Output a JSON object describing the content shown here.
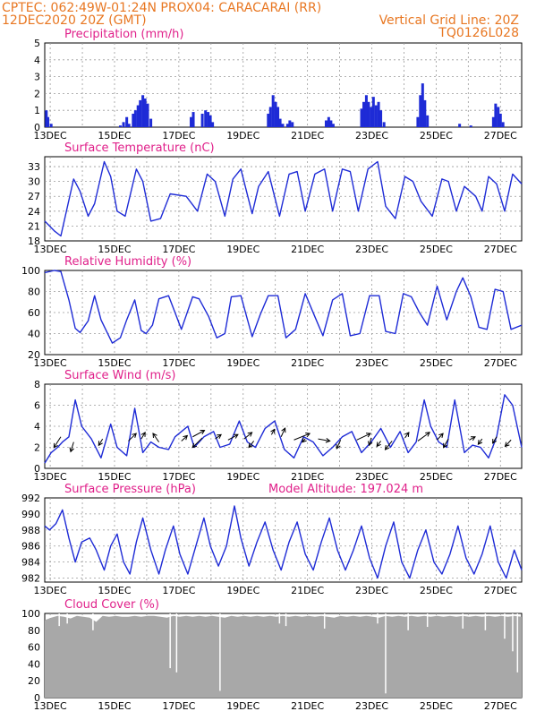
{
  "header": {
    "line1_left": "CPTEC:   062:49W-01:24N   PROX04: CARACARAI (RR)",
    "line2_left": "12DEC2020 20Z (GMT)",
    "line2_right": "Vertical Grid Line: 20Z",
    "line3_right": "TQ0126L028",
    "color": "#e87722"
  },
  "colors": {
    "title": "#e0208a",
    "series": "#1e2bd6",
    "cloud": "#a8a8a8",
    "wind_arrow": "#000000"
  },
  "x_axis": {
    "xlim": [
      0,
      14.83
    ],
    "ticks": [
      0.17,
      2.17,
      4.17,
      6.17,
      8.17,
      10.17,
      12.17,
      14.17
    ],
    "tick_labels": [
      "13DEC",
      "15DEC",
      "17DEC",
      "19DEC",
      "21DEC",
      "23DEC",
      "25DEC",
      "27DEC"
    ],
    "minor_ticks": [
      1.17,
      3.17,
      5.17,
      7.17,
      9.17,
      11.17,
      13.17
    ]
  },
  "chart_data": [
    {
      "type": "bar",
      "title": "Precipitation  (mm/h)",
      "ylim": [
        0,
        5
      ],
      "yticks": [
        0,
        1,
        2,
        3,
        4,
        5
      ],
      "bars": [
        [
          0.05,
          1.0
        ],
        [
          0.1,
          0.6
        ],
        [
          0.2,
          0.2
        ],
        [
          2.35,
          0.1
        ],
        [
          2.45,
          0.3
        ],
        [
          2.55,
          0.6
        ],
        [
          2.62,
          0.2
        ],
        [
          2.75,
          0.8
        ],
        [
          2.82,
          1.0
        ],
        [
          2.9,
          1.3
        ],
        [
          2.97,
          1.6
        ],
        [
          3.05,
          1.9
        ],
        [
          3.12,
          1.7
        ],
        [
          3.2,
          1.4
        ],
        [
          3.3,
          0.5
        ],
        [
          4.55,
          0.6
        ],
        [
          4.62,
          0.9
        ],
        [
          4.9,
          0.8
        ],
        [
          5.0,
          1.0
        ],
        [
          5.08,
          0.9
        ],
        [
          5.15,
          0.7
        ],
        [
          5.22,
          0.3
        ],
        [
          6.95,
          0.8
        ],
        [
          7.02,
          1.2
        ],
        [
          7.1,
          1.9
        ],
        [
          7.18,
          1.5
        ],
        [
          7.25,
          1.2
        ],
        [
          7.32,
          0.5
        ],
        [
          7.4,
          0.2
        ],
        [
          7.55,
          0.2
        ],
        [
          7.62,
          0.4
        ],
        [
          7.7,
          0.3
        ],
        [
          8.75,
          0.4
        ],
        [
          8.83,
          0.6
        ],
        [
          8.9,
          0.4
        ],
        [
          8.97,
          0.2
        ],
        [
          9.85,
          1.1
        ],
        [
          9.92,
          1.5
        ],
        [
          10.0,
          1.9
        ],
        [
          10.07,
          1.5
        ],
        [
          10.15,
          1.2
        ],
        [
          10.22,
          1.8
        ],
        [
          10.3,
          1.3
        ],
        [
          10.38,
          1.5
        ],
        [
          10.45,
          1.0
        ],
        [
          10.55,
          0.3
        ],
        [
          11.6,
          0.6
        ],
        [
          11.68,
          1.9
        ],
        [
          11.75,
          2.6
        ],
        [
          11.82,
          1.6
        ],
        [
          11.9,
          0.7
        ],
        [
          12.9,
          0.2
        ],
        [
          13.25,
          0.1
        ],
        [
          13.95,
          0.6
        ],
        [
          14.02,
          1.4
        ],
        [
          14.1,
          1.2
        ],
        [
          14.17,
          0.8
        ],
        [
          14.25,
          0.3
        ]
      ]
    },
    {
      "type": "line",
      "title": "Surface Temperature (nC)",
      "ylim": [
        18,
        35
      ],
      "yticks": [
        18,
        21,
        24,
        27,
        30,
        33
      ],
      "series": [
        {
          "x": [
            0,
            0.3,
            0.5,
            0.9,
            1.1,
            1.35,
            1.55,
            1.85,
            2.05,
            2.25,
            2.5,
            2.85,
            3.05,
            3.3,
            3.6,
            3.9,
            4.4,
            4.75,
            5.05,
            5.3,
            5.6,
            5.85,
            6.1,
            6.45,
            6.65,
            6.95,
            7.3,
            7.6,
            7.85,
            8.1,
            8.4,
            8.7,
            8.95,
            9.25,
            9.5,
            9.75,
            10.05,
            10.35,
            10.6,
            10.9,
            11.2,
            11.45,
            11.7,
            12.05,
            12.35,
            12.55,
            12.8,
            13.05,
            13.4,
            13.6,
            13.8,
            14.05,
            14.3,
            14.55,
            14.83
          ],
          "y": [
            22.0,
            20.0,
            19.0,
            30.5,
            28.0,
            23.0,
            25.5,
            34.0,
            31.0,
            24.0,
            23.0,
            32.5,
            30.0,
            22.0,
            22.5,
            27.5,
            27.0,
            24.0,
            31.5,
            30.0,
            23.0,
            30.5,
            32.5,
            23.5,
            29.0,
            32.0,
            23.0,
            31.5,
            32.0,
            24.0,
            31.5,
            32.5,
            24.0,
            32.5,
            32.0,
            24.0,
            32.5,
            34.0,
            25.0,
            22.5,
            31.0,
            30.0,
            26.0,
            23.0,
            30.5,
            30.0,
            24.0,
            29.0,
            27.0,
            24.0,
            31.0,
            29.5,
            24.0,
            31.5,
            29.5
          ]
        }
      ]
    },
    {
      "type": "line",
      "title": "Relative Humidity (%)",
      "ylim": [
        20,
        100
      ],
      "yticks": [
        20,
        40,
        60,
        80,
        100
      ],
      "series": [
        {
          "x": [
            0,
            0.3,
            0.5,
            0.75,
            0.95,
            1.1,
            1.35,
            1.55,
            1.75,
            2.1,
            2.35,
            2.55,
            2.8,
            3.0,
            3.15,
            3.35,
            3.55,
            3.85,
            4.05,
            4.25,
            4.6,
            4.8,
            5.1,
            5.35,
            5.6,
            5.8,
            6.1,
            6.45,
            6.7,
            6.95,
            7.25,
            7.5,
            7.8,
            8.1,
            8.4,
            8.65,
            8.95,
            9.25,
            9.5,
            9.8,
            10.1,
            10.4,
            10.6,
            10.9,
            11.15,
            11.4,
            11.65,
            11.9,
            12.2,
            12.5,
            12.8,
            13.0,
            13.25,
            13.5,
            13.75,
            14.0,
            14.25,
            14.5,
            14.83
          ],
          "y": [
            98,
            100,
            99,
            72,
            45,
            41,
            52,
            76,
            53,
            31,
            36,
            53,
            72,
            43,
            40,
            48,
            73,
            76,
            60,
            44,
            75,
            73,
            56,
            36,
            40,
            75,
            76,
            37,
            58,
            76,
            76,
            36,
            44,
            78,
            56,
            38,
            72,
            78,
            38,
            40,
            76,
            76,
            42,
            40,
            78,
            75,
            60,
            48,
            85,
            53,
            80,
            93,
            75,
            46,
            44,
            82,
            80,
            44,
            48
          ]
        }
      ]
    },
    {
      "type": "line",
      "title": "Surface  Wind  (m/s)",
      "ylim": [
        0,
        8
      ],
      "yticks": [
        0,
        2,
        4,
        6,
        8
      ],
      "series": [
        {
          "x": [
            0,
            0.2,
            0.4,
            0.55,
            0.75,
            0.95,
            1.15,
            1.45,
            1.75,
            2.05,
            2.25,
            2.55,
            2.8,
            3.05,
            3.3,
            3.55,
            3.85,
            4.05,
            4.25,
            4.45,
            4.65,
            4.95,
            5.25,
            5.45,
            5.75,
            6.05,
            6.3,
            6.55,
            6.85,
            7.15,
            7.45,
            7.75,
            8.05,
            8.35,
            8.65,
            8.95,
            9.25,
            9.55,
            9.85,
            10.15,
            10.45,
            10.75,
            11.05,
            11.3,
            11.55,
            11.8,
            12.0,
            12.25,
            12.5,
            12.75,
            13.05,
            13.3,
            13.55,
            13.8,
            14.05,
            14.3,
            14.55,
            14.83
          ],
          "y": [
            0.5,
            1.5,
            2.0,
            2.5,
            3.0,
            6.5,
            4.0,
            2.8,
            1.0,
            4.2,
            2.0,
            1.2,
            5.7,
            1.5,
            2.5,
            2.0,
            1.8,
            3.0,
            3.5,
            4.0,
            2.0,
            3.0,
            3.5,
            2.0,
            2.3,
            4.5,
            2.5,
            2.0,
            3.8,
            4.5,
            1.8,
            1.0,
            3.0,
            2.5,
            1.2,
            2.0,
            3.0,
            3.5,
            1.5,
            2.5,
            3.8,
            2.0,
            3.5,
            1.5,
            2.5,
            6.5,
            4.0,
            2.5,
            2.0,
            6.5,
            1.5,
            2.2,
            2.0,
            1.0,
            3.0,
            7.0,
            6.0,
            2.0
          ]
        }
      ],
      "arrows": [
        [
          0.5,
          3.0,
          -0.35,
          -1.0
        ],
        [
          0.9,
          2.5,
          -0.15,
          -0.9
        ],
        [
          1.8,
          2.8,
          -0.2,
          -0.6
        ],
        [
          2.6,
          2.6,
          0.4,
          0.7
        ],
        [
          3.0,
          2.8,
          0.2,
          0.6
        ],
        [
          3.55,
          2.5,
          -0.3,
          0.8
        ],
        [
          4.25,
          2.6,
          0.3,
          0.5
        ],
        [
          4.6,
          3.0,
          0.6,
          0.6
        ],
        [
          4.9,
          2.9,
          -0.5,
          -0.9
        ],
        [
          5.3,
          2.8,
          0.3,
          0.4
        ],
        [
          5.7,
          2.7,
          0.5,
          0.5
        ],
        [
          6.2,
          2.8,
          0.4,
          0.6
        ],
        [
          6.5,
          2.6,
          -0.25,
          -0.6
        ],
        [
          7.05,
          3.2,
          0.15,
          0.5
        ],
        [
          7.35,
          3.0,
          0.2,
          0.8
        ],
        [
          7.75,
          2.7,
          0.8,
          0.6
        ],
        [
          8.1,
          2.8,
          -0.15,
          -0.3
        ],
        [
          8.5,
          2.8,
          0.6,
          -0.2
        ],
        [
          9.2,
          2.7,
          -0.2,
          -0.8
        ],
        [
          9.7,
          2.7,
          0.7,
          0.6
        ],
        [
          10.15,
          2.9,
          -0.1,
          -0.7
        ],
        [
          10.45,
          2.6,
          -0.2,
          -0.5
        ],
        [
          10.8,
          2.6,
          -0.35,
          -0.8
        ],
        [
          11.2,
          2.9,
          0.2,
          0.5
        ],
        [
          11.6,
          2.6,
          0.6,
          0.8
        ],
        [
          12.2,
          2.7,
          0.3,
          0.6
        ],
        [
          12.55,
          2.8,
          -0.25,
          -0.8
        ],
        [
          13.2,
          2.7,
          0.3,
          0.3
        ],
        [
          13.6,
          2.8,
          -0.2,
          -0.5
        ],
        [
          14.05,
          3.0,
          -0.2,
          -0.6
        ],
        [
          14.5,
          2.7,
          -0.3,
          -0.6
        ]
      ]
    },
    {
      "type": "line",
      "title": "Surface  Pressure  (hPa)",
      "annotation": "Model  Altitude:  197.024  m",
      "ylim": [
        981.5,
        992
      ],
      "yticks": [
        982,
        984,
        986,
        988,
        990,
        992
      ],
      "series": [
        {
          "x": [
            0,
            0.15,
            0.35,
            0.55,
            0.75,
            0.95,
            1.15,
            1.4,
            1.6,
            1.85,
            2.05,
            2.25,
            2.45,
            2.65,
            2.85,
            3.05,
            3.3,
            3.55,
            3.75,
            4.0,
            4.2,
            4.45,
            4.7,
            4.95,
            5.15,
            5.4,
            5.65,
            5.9,
            6.1,
            6.35,
            6.6,
            6.85,
            7.1,
            7.35,
            7.6,
            7.85,
            8.1,
            8.35,
            8.6,
            8.85,
            9.1,
            9.35,
            9.6,
            9.85,
            10.1,
            10.35,
            10.6,
            10.85,
            11.1,
            11.35,
            11.6,
            11.85,
            12.1,
            12.35,
            12.6,
            12.85,
            13.1,
            13.35,
            13.6,
            13.85,
            14.1,
            14.35,
            14.6,
            14.83
          ],
          "y": [
            988.5,
            988.0,
            988.8,
            990.5,
            987.0,
            984.0,
            986.5,
            987.0,
            985.5,
            983.0,
            986.0,
            987.5,
            984.0,
            982.5,
            986.5,
            989.5,
            985.5,
            982.5,
            985.5,
            988.5,
            985.0,
            982.5,
            986.0,
            989.5,
            986.0,
            983.5,
            986.0,
            991.0,
            987.0,
            983.5,
            986.5,
            989.0,
            985.5,
            983.0,
            986.5,
            989.0,
            985.0,
            983.0,
            986.5,
            989.5,
            985.5,
            983.0,
            985.5,
            988.5,
            984.5,
            982.0,
            986.0,
            989.0,
            984.0,
            982.0,
            985.5,
            988.0,
            984.0,
            982.5,
            985.0,
            988.5,
            984.5,
            982.5,
            985.0,
            988.5,
            984.0,
            982.0,
            985.5,
            983.0
          ]
        }
      ]
    },
    {
      "type": "area",
      "title": "Cloud Cover (%)",
      "ylim": [
        0,
        100
      ],
      "yticks": [
        0,
        20,
        40,
        60,
        80,
        100
      ],
      "x": [
        0,
        0.2,
        0.4,
        0.6,
        0.8,
        1.0,
        1.2,
        1.4,
        1.6,
        1.8,
        2.0,
        2.2,
        2.4,
        2.6,
        2.8,
        3.0,
        3.2,
        3.4,
        3.6,
        3.8,
        4.0,
        4.2,
        4.4,
        4.6,
        4.8,
        5.0,
        5.2,
        5.4,
        5.6,
        5.8,
        6.0,
        6.2,
        6.4,
        6.6,
        6.8,
        7.0,
        7.2,
        7.4,
        7.6,
        7.8,
        8.0,
        8.2,
        8.4,
        8.6,
        8.8,
        9.0,
        9.2,
        9.4,
        9.6,
        9.8,
        10.0,
        10.2,
        10.4,
        10.6,
        10.8,
        11.0,
        11.2,
        11.4,
        11.6,
        11.8,
        12.0,
        12.2,
        12.4,
        12.6,
        12.8,
        13.0,
        13.2,
        13.4,
        13.6,
        13.8,
        14.0,
        14.2,
        14.4,
        14.6,
        14.83
      ],
      "values": [
        92,
        95,
        97,
        96,
        94,
        97,
        96,
        95,
        90,
        97,
        96,
        97,
        96,
        96,
        97,
        96,
        97,
        97,
        96,
        95,
        97,
        96,
        97,
        96,
        97,
        96,
        97,
        96,
        95,
        97,
        96,
        97,
        96,
        97,
        96,
        97,
        96,
        97,
        96,
        97,
        96,
        97,
        96,
        97,
        96,
        95,
        97,
        96,
        97,
        96,
        97,
        96,
        95,
        97,
        96,
        97,
        96,
        97,
        96,
        97,
        96,
        97,
        96,
        97,
        96,
        97,
        96,
        97,
        96,
        97,
        96,
        97,
        96,
        97,
        96
      ],
      "dips": [
        [
          0.45,
          85
        ],
        [
          0.7,
          88
        ],
        [
          1.5,
          80
        ],
        [
          3.9,
          35
        ],
        [
          4.1,
          30
        ],
        [
          5.45,
          8
        ],
        [
          7.3,
          88
        ],
        [
          7.5,
          85
        ],
        [
          8.7,
          82
        ],
        [
          10.35,
          88
        ],
        [
          10.6,
          5
        ],
        [
          11.3,
          80
        ],
        [
          11.9,
          84
        ],
        [
          13.0,
          82
        ],
        [
          13.7,
          80
        ],
        [
          14.3,
          70
        ],
        [
          14.55,
          55
        ],
        [
          14.7,
          30
        ]
      ]
    }
  ]
}
